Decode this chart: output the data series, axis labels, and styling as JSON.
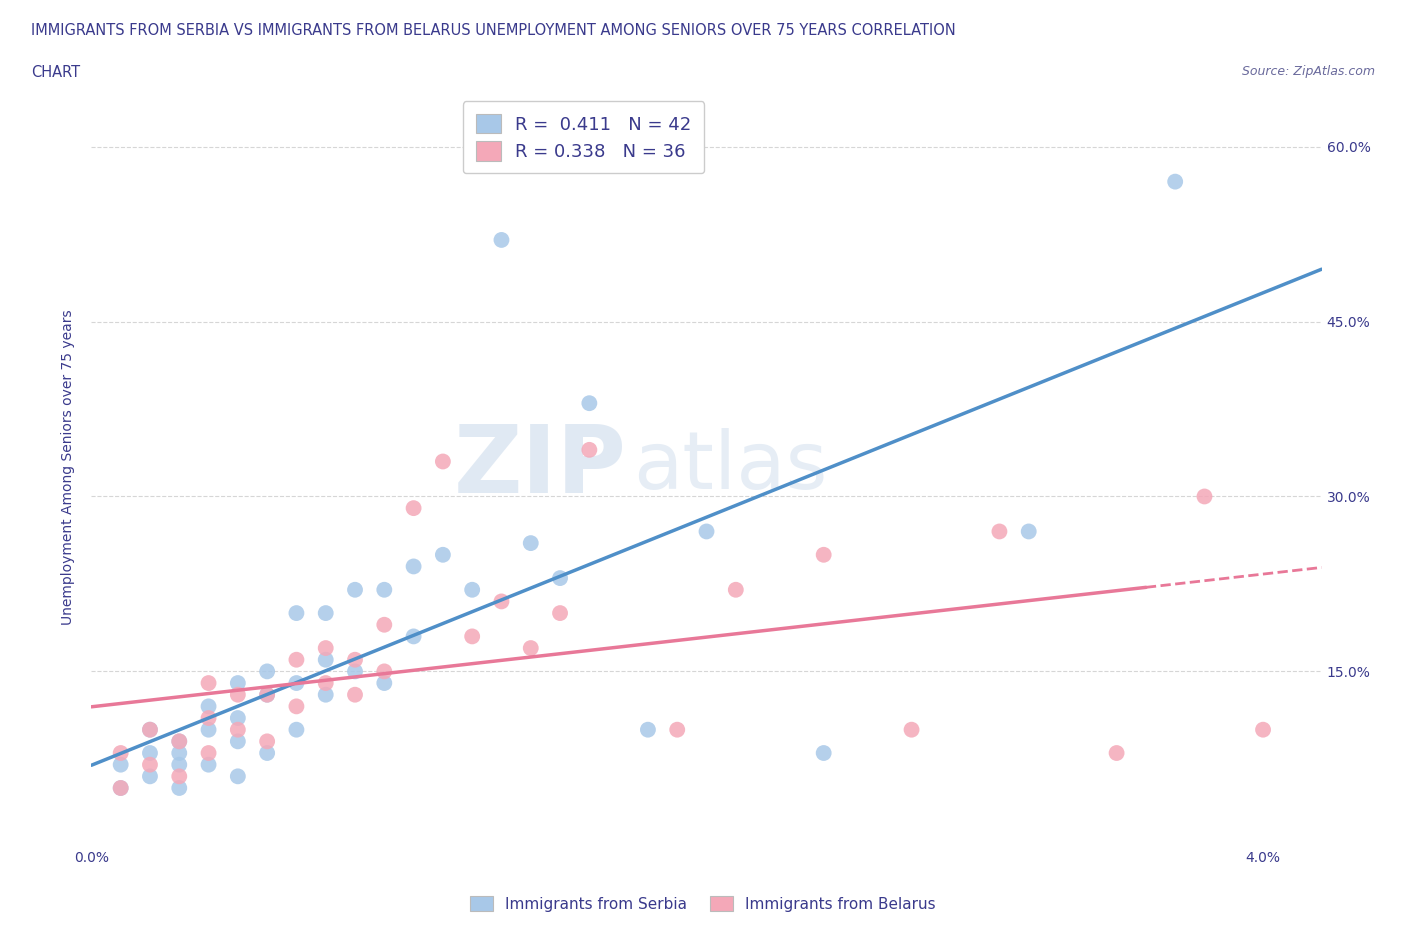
{
  "title_line1": "IMMIGRANTS FROM SERBIA VS IMMIGRANTS FROM BELARUS UNEMPLOYMENT AMONG SENIORS OVER 75 YEARS CORRELATION",
  "title_line2": "CHART",
  "source_text": "Source: ZipAtlas.com",
  "ylabel": "Unemployment Among Seniors over 75 years",
  "yticks_labels": [
    "60.0%",
    "45.0%",
    "30.0%",
    "15.0%"
  ],
  "yticks_values": [
    0.6,
    0.45,
    0.3,
    0.15
  ],
  "legend_serbia_R": "0.411",
  "legend_serbia_N": "42",
  "legend_belarus_R": "0.338",
  "legend_belarus_N": "36",
  "serbia_color": "#a8c8e8",
  "belarus_color": "#f4a8b8",
  "serbia_line_color": "#4f8fc8",
  "belarus_line_color": "#e87898",
  "watermark_zip": "ZIP",
  "watermark_atlas": "atlas",
  "watermark_color": "#c8d8e8",
  "serbia_scatter_x": [
    0.001,
    0.001,
    0.002,
    0.002,
    0.002,
    0.003,
    0.003,
    0.003,
    0.003,
    0.004,
    0.004,
    0.004,
    0.005,
    0.005,
    0.005,
    0.005,
    0.006,
    0.006,
    0.006,
    0.007,
    0.007,
    0.007,
    0.008,
    0.008,
    0.008,
    0.009,
    0.009,
    0.01,
    0.01,
    0.011,
    0.011,
    0.012,
    0.013,
    0.014,
    0.015,
    0.016,
    0.017,
    0.019,
    0.021,
    0.025,
    0.032,
    0.037
  ],
  "serbia_scatter_y": [
    0.05,
    0.07,
    0.06,
    0.08,
    0.1,
    0.05,
    0.07,
    0.09,
    0.08,
    0.07,
    0.1,
    0.12,
    0.06,
    0.09,
    0.11,
    0.14,
    0.08,
    0.13,
    0.15,
    0.1,
    0.14,
    0.2,
    0.13,
    0.16,
    0.2,
    0.15,
    0.22,
    0.14,
    0.22,
    0.18,
    0.24,
    0.25,
    0.22,
    0.52,
    0.26,
    0.23,
    0.38,
    0.1,
    0.27,
    0.08,
    0.27,
    0.57
  ],
  "belarus_scatter_x": [
    0.001,
    0.001,
    0.002,
    0.002,
    0.003,
    0.003,
    0.004,
    0.004,
    0.004,
    0.005,
    0.005,
    0.006,
    0.006,
    0.007,
    0.007,
    0.008,
    0.008,
    0.009,
    0.009,
    0.01,
    0.01,
    0.011,
    0.012,
    0.013,
    0.014,
    0.015,
    0.016,
    0.017,
    0.02,
    0.022,
    0.025,
    0.028,
    0.031,
    0.035,
    0.038,
    0.04
  ],
  "belarus_scatter_y": [
    0.05,
    0.08,
    0.07,
    0.1,
    0.06,
    0.09,
    0.08,
    0.11,
    0.14,
    0.1,
    0.13,
    0.09,
    0.13,
    0.12,
    0.16,
    0.14,
    0.17,
    0.13,
    0.16,
    0.15,
    0.19,
    0.29,
    0.33,
    0.18,
    0.21,
    0.17,
    0.2,
    0.34,
    0.1,
    0.22,
    0.25,
    0.1,
    0.27,
    0.08,
    0.3,
    0.1
  ],
  "xlim": [
    0.0,
    0.042
  ],
  "ylim": [
    0.0,
    0.65
  ],
  "xtick_positions": [
    0.0,
    0.01,
    0.02,
    0.03,
    0.04
  ],
  "xtick_labels": [
    "0.0%",
    "",
    "",
    "",
    "4.0%"
  ],
  "belarus_dash_split": 0.036
}
